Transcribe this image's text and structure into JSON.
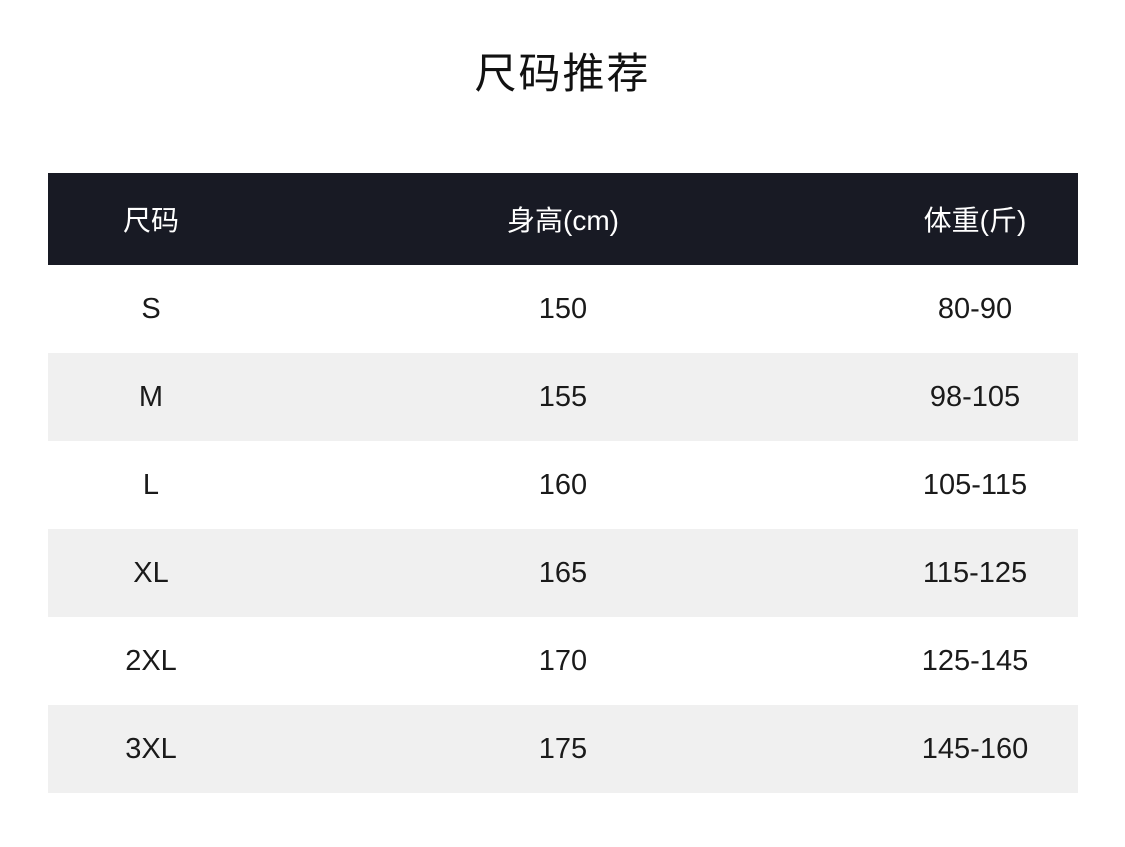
{
  "page_title": "尺码推荐",
  "chart_data": {
    "type": "table",
    "title": "尺码推荐",
    "columns": [
      "尺码",
      "身高(cm)",
      "体重(斤)"
    ],
    "rows": [
      [
        "S",
        "150",
        "80-90"
      ],
      [
        "M",
        "155",
        "98-105"
      ],
      [
        "L",
        "160",
        "105-115"
      ],
      [
        "XL",
        "165",
        "115-125"
      ],
      [
        "2XL",
        "170",
        "125-145"
      ],
      [
        "3XL",
        "175",
        "145-160"
      ]
    ],
    "layout_hints": {
      "striped_rows": "even rows shaded",
      "header_style": "dark bar with white text",
      "alignment": "all cells centered"
    }
  },
  "colors": {
    "header_background": "#181a24",
    "header_text": "#ffffff",
    "stripe_row_background": "#f0f0f0",
    "plain_row_background": "#ffffff",
    "body_text": "#1a1a1a",
    "title_text": "#111111",
    "page_background": "#ffffff"
  }
}
